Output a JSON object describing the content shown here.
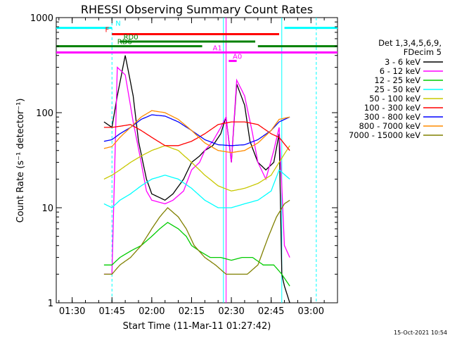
{
  "chart_data": {
    "type": "line",
    "title": "RHESSI Observing Summary Count Rates",
    "xlabel": "Start Time (11-Mar-11 01:27:42)",
    "ylabel": "Count Rate (s⁻¹ detector⁻¹)",
    "yscale": "log",
    "ylim": [
      1,
      1000
    ],
    "xlim": [
      "01:24",
      "03:10"
    ],
    "x_ticks": [
      "01:30",
      "01:45",
      "02:00",
      "02:15",
      "02:30",
      "02:45",
      "03:00"
    ],
    "y_ticks": [
      "1",
      "10",
      "100",
      "1000"
    ],
    "legend_position": "right",
    "legend_header": [
      "Det 1,3,4,5,6,9,",
      "FDecim 5"
    ],
    "timestamp": "15-Oct-2021 10:54",
    "series": [
      {
        "name": "3 - 6 keV",
        "color": "#000000",
        "x": [
          "01:42",
          "01:45",
          "01:47",
          "01:50",
          "01:53",
          "01:55",
          "01:58",
          "02:00",
          "02:05",
          "02:08",
          "02:12",
          "02:15",
          "02:18",
          "02:20",
          "02:23",
          "02:26",
          "02:28",
          "02:30",
          "02:32",
          "02:35",
          "02:37",
          "02:40",
          "02:43",
          "02:46",
          "02:48",
          "02:49",
          "02:50",
          "02:52"
        ],
        "y": [
          80,
          70,
          150,
          400,
          150,
          50,
          20,
          14,
          12,
          14,
          20,
          30,
          35,
          40,
          45,
          60,
          90,
          30,
          200,
          120,
          50,
          30,
          25,
          30,
          60,
          2,
          1.5,
          1
        ]
      },
      {
        "name": "6 - 12 keV",
        "color": "#ff00ff",
        "x": [
          "01:42",
          "01:45",
          "01:47",
          "01:50",
          "01:53",
          "01:56",
          "01:58",
          "02:00",
          "02:05",
          "02:08",
          "02:12",
          "02:15",
          "02:18",
          "02:20",
          "02:23",
          "02:26",
          "02:28",
          "02:30",
          "02:32",
          "02:35",
          "02:38",
          "02:40",
          "02:43",
          "02:46",
          "02:48",
          "02:50",
          "02:52"
        ],
        "y": [
          2,
          2,
          300,
          250,
          80,
          30,
          15,
          12,
          11,
          12,
          15,
          25,
          30,
          40,
          50,
          70,
          90,
          30,
          220,
          150,
          60,
          30,
          20,
          40,
          70,
          4,
          3
        ]
      },
      {
        "name": "12 - 25 keV",
        "color": "#00cc00",
        "x": [
          "01:42",
          "01:45",
          "01:48",
          "01:52",
          "01:56",
          "02:00",
          "02:03",
          "02:06",
          "02:10",
          "02:13",
          "02:15",
          "02:18",
          "02:22",
          "02:26",
          "02:30",
          "02:34",
          "02:38",
          "02:42",
          "02:46",
          "02:49",
          "02:52"
        ],
        "y": [
          2.5,
          2.5,
          3,
          3.5,
          4,
          5,
          6,
          7,
          6,
          5,
          4,
          3.5,
          3,
          3,
          2.8,
          3,
          3,
          2.5,
          2.5,
          2,
          1.5
        ]
      },
      {
        "name": "25 - 50 keV",
        "color": "#00ffff",
        "x": [
          "01:42",
          "01:45",
          "01:48",
          "01:52",
          "01:56",
          "02:00",
          "02:05",
          "02:10",
          "02:15",
          "02:20",
          "02:25",
          "02:30",
          "02:35",
          "02:40",
          "02:45",
          "02:48",
          "02:52"
        ],
        "y": [
          11,
          10,
          12,
          14,
          17,
          20,
          22,
          20,
          16,
          12,
          10,
          10,
          11,
          12,
          15,
          25,
          20
        ]
      },
      {
        "name": "50 - 100 keV",
        "color": "#c8c800",
        "x": [
          "01:42",
          "01:45",
          "01:48",
          "01:52",
          "01:56",
          "02:00",
          "02:05",
          "02:10",
          "02:15",
          "02:20",
          "02:25",
          "02:30",
          "02:35",
          "02:40",
          "02:45",
          "02:48",
          "02:52"
        ],
        "y": [
          20,
          22,
          25,
          30,
          35,
          40,
          45,
          40,
          30,
          22,
          17,
          15,
          16,
          18,
          22,
          30,
          45
        ]
      },
      {
        "name": "100 - 300 keV",
        "color": "#ff0000",
        "x": [
          "01:42",
          "01:45",
          "01:48",
          "01:52",
          "01:56",
          "02:00",
          "02:05",
          "02:10",
          "02:15",
          "02:20",
          "02:25",
          "02:30",
          "02:35",
          "02:40",
          "02:45",
          "02:48",
          "02:52"
        ],
        "y": [
          70,
          70,
          72,
          75,
          65,
          55,
          45,
          45,
          50,
          60,
          75,
          80,
          80,
          75,
          60,
          55,
          40
        ]
      },
      {
        "name": "300 - 800 keV",
        "color": "#0000ff",
        "x": [
          "01:42",
          "01:45",
          "01:48",
          "01:52",
          "01:56",
          "02:00",
          "02:05",
          "02:10",
          "02:15",
          "02:20",
          "02:25",
          "02:30",
          "02:35",
          "02:40",
          "02:45",
          "02:48",
          "02:52"
        ],
        "y": [
          50,
          52,
          60,
          70,
          85,
          95,
          92,
          80,
          65,
          52,
          46,
          45,
          46,
          52,
          65,
          80,
          90
        ]
      },
      {
        "name": "800 - 7000 keV",
        "color": "#ff8c00",
        "x": [
          "01:42",
          "01:45",
          "01:48",
          "01:52",
          "01:56",
          "02:00",
          "02:05",
          "02:10",
          "02:15",
          "02:20",
          "02:25",
          "02:30",
          "02:35",
          "02:40",
          "02:45",
          "02:48",
          "02:52"
        ],
        "y": [
          42,
          44,
          55,
          70,
          90,
          105,
          100,
          85,
          65,
          48,
          40,
          38,
          40,
          48,
          65,
          85,
          90
        ]
      },
      {
        "name": "7000 - 15000 keV",
        "color": "#808000",
        "x": [
          "01:42",
          "01:45",
          "01:48",
          "01:52",
          "01:56",
          "02:00",
          "02:03",
          "02:06",
          "02:10",
          "02:13",
          "02:16",
          "02:20",
          "02:24",
          "02:28",
          "02:32",
          "02:36",
          "02:40",
          "02:44",
          "02:47",
          "02:50",
          "02:52"
        ],
        "y": [
          2,
          2,
          2.5,
          3,
          4,
          6,
          8,
          10,
          8,
          6,
          4,
          3,
          2.5,
          2,
          2,
          2,
          2.5,
          5,
          8,
          11,
          12
        ]
      }
    ],
    "status_bars": [
      {
        "label": "N",
        "color": "#00ffff",
        "level": 780,
        "segments": [
          [
            "01:24",
            "01:45"
          ],
          [
            "02:50",
            "03:10"
          ]
        ]
      },
      {
        "label": "F",
        "color": "#ff0000",
        "level": 670,
        "segments": [
          [
            "01:45",
            "02:48"
          ]
        ]
      },
      {
        "label": "RD0",
        "color": "#008000",
        "level": 560,
        "segments": [
          [
            "01:48",
            "02:32"
          ],
          [
            "02:15",
            "02:39"
          ]
        ]
      },
      {
        "label": "RD6",
        "color": "#008000",
        "level": 500,
        "segments": [
          [
            "01:24",
            "02:19"
          ],
          [
            "02:40",
            "03:10"
          ]
        ]
      },
      {
        "label": "A1",
        "color": "#ff00ff",
        "level": 430,
        "segments": [
          [
            "01:24",
            "03:10"
          ]
        ]
      },
      {
        "label": "A0",
        "color": "#ff00ff",
        "level": 350,
        "segments": [
          [
            "02:29",
            "02:32"
          ]
        ]
      }
    ],
    "vlines": [
      {
        "color": "#00ffff",
        "dashed": true,
        "t": "01:45"
      },
      {
        "color": "#00ffff",
        "dashed": false,
        "t": "02:49"
      },
      {
        "color": "#00ffff",
        "dashed": true,
        "t": "03:02"
      },
      {
        "color": "#000000",
        "dashed": false,
        "t": "02:28"
      },
      {
        "color": "#ff00ff",
        "dashed": false,
        "t": "02:28"
      },
      {
        "color": "#00ffff",
        "dashed": false,
        "t": "02:27"
      }
    ]
  }
}
